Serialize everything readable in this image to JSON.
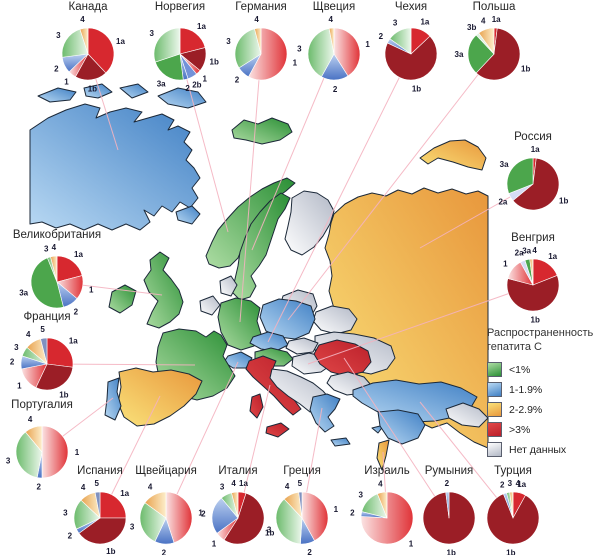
{
  "legend": {
    "title_line1": "Распространенность",
    "title_line2": "гепатита С",
    "items": [
      {
        "key": "lt1",
        "label": "<1%"
      },
      {
        "key": "b1_19",
        "label": "1-1.9%"
      },
      {
        "key": "b2_29",
        "label": "2-2.9%"
      },
      {
        "key": "gt3",
        "label": ">3%"
      },
      {
        "key": "nodata",
        "label": "Нет данных"
      }
    ]
  },
  "map": {
    "category_colors": {
      "lt1": {
        "from": "#aedda4",
        "to": "#2a8f35"
      },
      "b1_19": {
        "from": "#b9d9f3",
        "to": "#3f7fc4"
      },
      "b2_29": {
        "from": "#fae27a",
        "to": "#e8973c"
      },
      "gt3": {
        "from": "#e04848",
        "to": "#bb1f2a"
      },
      "nodata": {
        "from": "#ffffff",
        "to": "#b2b8c6"
      }
    },
    "countries": [
      {
        "id": "canada",
        "category": "b1_19"
      },
      {
        "id": "canada_isl_1",
        "category": "b1_19"
      },
      {
        "id": "canada_isl_2",
        "category": "b1_19"
      },
      {
        "id": "canada_isl_3",
        "category": "b1_19"
      },
      {
        "id": "greenland_tip",
        "category": "b1_19"
      },
      {
        "id": "newfoundland",
        "category": "b1_19"
      },
      {
        "id": "iceland",
        "category": "lt1"
      },
      {
        "id": "norway",
        "category": "lt1"
      },
      {
        "id": "sweden",
        "category": "lt1"
      },
      {
        "id": "finland",
        "category": "nodata"
      },
      {
        "id": "kola",
        "category": "b2_29"
      },
      {
        "id": "russia",
        "category": "b2_29"
      },
      {
        "id": "baltics",
        "category": "nodata"
      },
      {
        "id": "belarus",
        "category": "nodata"
      },
      {
        "id": "ukraine",
        "category": "nodata"
      },
      {
        "id": "denmark",
        "category": "nodata"
      },
      {
        "id": "uk",
        "category": "lt1"
      },
      {
        "id": "ireland",
        "category": "lt1"
      },
      {
        "id": "benelux",
        "category": "nodata"
      },
      {
        "id": "germany",
        "category": "lt1"
      },
      {
        "id": "poland",
        "category": "b1_19"
      },
      {
        "id": "czech",
        "category": "b1_19"
      },
      {
        "id": "slovakia",
        "category": "nodata"
      },
      {
        "id": "austria",
        "category": "lt1"
      },
      {
        "id": "hungary",
        "category": "nodata"
      },
      {
        "id": "switzerland",
        "category": "b1_19"
      },
      {
        "id": "france",
        "category": "lt1"
      },
      {
        "id": "spain",
        "category": "b2_29"
      },
      {
        "id": "portugal",
        "category": "b1_19"
      },
      {
        "id": "italy",
        "category": "gt3"
      },
      {
        "id": "sicily",
        "category": "gt3"
      },
      {
        "id": "sardinia",
        "category": "gt3"
      },
      {
        "id": "balkans",
        "category": "nodata"
      },
      {
        "id": "romania",
        "category": "gt3"
      },
      {
        "id": "bulgaria",
        "category": "nodata"
      },
      {
        "id": "greece",
        "category": "b1_19"
      },
      {
        "id": "crete",
        "category": "b1_19"
      },
      {
        "id": "turkey",
        "category": "b1_19"
      },
      {
        "id": "cyprus",
        "category": "b1_19"
      },
      {
        "id": "syria",
        "category": "b1_19"
      },
      {
        "id": "israel",
        "category": "b2_29"
      },
      {
        "id": "caucasus",
        "category": "nodata"
      }
    ]
  },
  "chart_data": {
    "type": "pie",
    "description": "Genotype distribution pie charts of hepatitis C per country; slice values in percent, clockwise from 12 o'clock",
    "genotype_colors": {
      "1a": {
        "solid": "#d7282f"
      },
      "1b": {
        "solid": "#9b1e26"
      },
      "1": {
        "from": "#fbe3e3",
        "to": "#e03338",
        "dir": [
          0,
          0,
          1,
          0
        ]
      },
      "2": {
        "from": "#bcd0f0",
        "to": "#4a72c4",
        "dir": [
          0,
          0,
          0,
          1
        ]
      },
      "2a": {
        "solid": "#d6dcf4"
      },
      "2b": {
        "solid": "#7292d8"
      },
      "3": {
        "from": "#ecf7ec",
        "to": "#6cbb6c",
        "dir": [
          1,
          0,
          0,
          0
        ]
      },
      "3a": {
        "solid": "#4ca64c"
      },
      "3b": {
        "solid": "#dff0df"
      },
      "4": {
        "from": "#fdeecb",
        "to": "#e8a24e",
        "dir": [
          1,
          0,
          0,
          0
        ]
      },
      "5": {
        "solid": "#8091bf"
      }
    },
    "charts": [
      {
        "id": "canada",
        "title": "Канада",
        "segments": [
          {
            "g": "1a",
            "v": 38
          },
          {
            "g": "1b",
            "v": 20
          },
          {
            "g": "1",
            "v": 5
          },
          {
            "g": "2",
            "v": 10
          },
          {
            "g": "3",
            "v": 22
          },
          {
            "g": "4",
            "v": 5
          }
        ]
      },
      {
        "id": "norway",
        "title": "Норвегия",
        "segments": [
          {
            "g": "1a",
            "v": 21
          },
          {
            "g": "1b",
            "v": 15
          },
          {
            "g": "1",
            "v": 3
          },
          {
            "g": "2b",
            "v": 6
          },
          {
            "g": "2",
            "v": 3
          },
          {
            "g": "3a",
            "v": 22
          },
          {
            "g": "3",
            "v": 30
          }
        ]
      },
      {
        "id": "germany",
        "title": "Германия",
        "segments": [
          {
            "g": "1",
            "v": 58
          },
          {
            "g": "2",
            "v": 8
          },
          {
            "g": "3",
            "v": 30
          },
          {
            "g": "4",
            "v": 4
          }
        ]
      },
      {
        "id": "sweden",
        "title": "Щвеция",
        "segments": [
          {
            "g": "1",
            "v": 41
          },
          {
            "g": "2",
            "v": 17
          },
          {
            "g": "3",
            "v": 39
          },
          {
            "g": "4",
            "v": 3
          }
        ]
      },
      {
        "id": "czech",
        "title": "Чехия",
        "segments": [
          {
            "g": "1a",
            "v": 13
          },
          {
            "g": "1b",
            "v": 69
          },
          {
            "g": "2",
            "v": 3
          },
          {
            "g": "3",
            "v": 15
          }
        ]
      },
      {
        "id": "poland",
        "title": "Польша",
        "segments": [
          {
            "g": "1a",
            "v": 2
          },
          {
            "g": "1b",
            "v": 60
          },
          {
            "g": "3a",
            "v": 26
          },
          {
            "g": "3b",
            "v": 2
          },
          {
            "g": "4",
            "v": 10
          }
        ]
      },
      {
        "id": "russia",
        "title": "Россия",
        "segments": [
          {
            "g": "1a",
            "v": 2
          },
          {
            "g": "1b",
            "v": 62
          },
          {
            "g": "2a",
            "v": 5
          },
          {
            "g": "3a",
            "v": 31
          }
        ]
      },
      {
        "id": "hungary",
        "title": "Венгрия",
        "segments": [
          {
            "g": "1a",
            "v": 19
          },
          {
            "g": "1b",
            "v": 60
          },
          {
            "g": "1",
            "v": 13
          },
          {
            "g": "2a",
            "v": 3
          },
          {
            "g": "3a",
            "v": 3
          },
          {
            "g": "4",
            "v": 2
          }
        ]
      },
      {
        "id": "uk",
        "title": "Великобритания",
        "segments": [
          {
            "g": "1a",
            "v": 21
          },
          {
            "g": "1",
            "v": 15
          },
          {
            "g": "2",
            "v": 10
          },
          {
            "g": "3a",
            "v": 48
          },
          {
            "g": "3",
            "v": 2
          },
          {
            "g": "4",
            "v": 4
          }
        ]
      },
      {
        "id": "france",
        "title": "Франция",
        "segments": [
          {
            "g": "1a",
            "v": 27
          },
          {
            "g": "1b",
            "v": 30
          },
          {
            "g": "1",
            "v": 15
          },
          {
            "g": "2",
            "v": 8
          },
          {
            "g": "3",
            "v": 6
          },
          {
            "g": "4",
            "v": 10
          },
          {
            "g": "5",
            "v": 4
          }
        ]
      },
      {
        "id": "portugal",
        "title": "Португалия",
        "segments": [
          {
            "g": "1",
            "v": 50
          },
          {
            "g": "2",
            "v": 3
          },
          {
            "g": "3",
            "v": 36
          },
          {
            "g": "4",
            "v": 11
          }
        ]
      },
      {
        "id": "spain",
        "title": "Испания",
        "segments": [
          {
            "g": "1a",
            "v": 25
          },
          {
            "g": "1b",
            "v": 40
          },
          {
            "g": "2",
            "v": 3
          },
          {
            "g": "3",
            "v": 19
          },
          {
            "g": "4",
            "v": 10
          },
          {
            "g": "5",
            "v": 3
          }
        ]
      },
      {
        "id": "switzerland",
        "title": "Щвейцария",
        "segments": [
          {
            "g": "1",
            "v": 45
          },
          {
            "g": "2",
            "v": 12
          },
          {
            "g": "3",
            "v": 28
          },
          {
            "g": "4",
            "v": 15
          }
        ]
      },
      {
        "id": "italy",
        "title": "Италия",
        "segments": [
          {
            "g": "1a",
            "v": 5
          },
          {
            "g": "1b",
            "v": 54
          },
          {
            "g": "1",
            "v": 6
          },
          {
            "g": "2",
            "v": 24
          },
          {
            "g": "3",
            "v": 7
          },
          {
            "g": "4",
            "v": 4
          }
        ]
      },
      {
        "id": "greece",
        "title": "Греция",
        "segments": [
          {
            "g": "1",
            "v": 42
          },
          {
            "g": "2",
            "v": 9
          },
          {
            "g": "3",
            "v": 37
          },
          {
            "g": "4",
            "v": 10
          },
          {
            "g": "5",
            "v": 2
          }
        ]
      },
      {
        "id": "israel",
        "title": "Израиль",
        "segments": [
          {
            "g": "1",
            "v": 76
          },
          {
            "g": "2",
            "v": 3
          },
          {
            "g": "3",
            "v": 15
          },
          {
            "g": "4",
            "v": 6
          }
        ]
      },
      {
        "id": "romania",
        "title": "Румыния",
        "segments": [
          {
            "g": "1b",
            "v": 98
          },
          {
            "g": "2",
            "v": 2
          }
        ]
      },
      {
        "id": "turkey",
        "title": "Турция",
        "segments": [
          {
            "g": "1a",
            "v": 8
          },
          {
            "g": "1b",
            "v": 86
          },
          {
            "g": "2",
            "v": 2
          },
          {
            "g": "3",
            "v": 2
          },
          {
            "g": "4",
            "v": 2
          }
        ]
      }
    ]
  }
}
